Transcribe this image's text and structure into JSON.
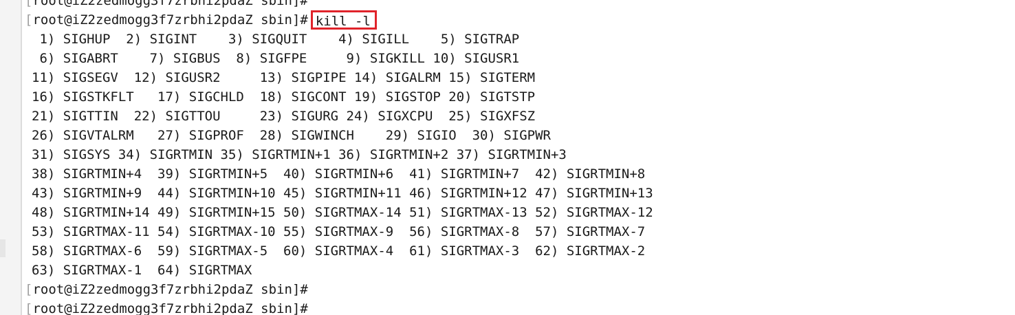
{
  "terminal": {
    "prompt": "root@iZ2zedmogg3f7zrbhi2pdaZ sbin]#",
    "prompt_bracket": "[",
    "command": "kill -l",
    "highlight_color": "#e0232a",
    "output": [
      " 1) SIGHUP  2) SIGINT    3) SIGQUIT    4) SIGILL    5) SIGTRAP",
      " 6) SIGABRT    7) SIGBUS  8) SIGFPE     9) SIGKILL 10) SIGUSR1",
      "11) SIGSEGV  12) SIGUSR2     13) SIGPIPE 14) SIGALRM 15) SIGTERM",
      "16) SIGSTKFLT   17) SIGCHLD  18) SIGCONT 19) SIGSTOP 20) SIGTSTP",
      "21) SIGTTIN  22) SIGTTOU     23) SIGURG 24) SIGXCPU  25) SIGXFSZ",
      "26) SIGVTALRM   27) SIGPROF  28) SIGWINCH    29) SIGIO  30) SIGPWR",
      "31) SIGSYS 34) SIGRTMIN 35) SIGRTMIN+1 36) SIGRTMIN+2 37) SIGRTMIN+3",
      "38) SIGRTMIN+4  39) SIGRTMIN+5  40) SIGRTMIN+6  41) SIGRTMIN+7  42) SIGRTMIN+8",
      "43) SIGRTMIN+9  44) SIGRTMIN+10 45) SIGRTMIN+11 46) SIGRTMIN+12 47) SIGRTMIN+13",
      "48) SIGRTMIN+14 49) SIGRTMIN+15 50) SIGRTMAX-14 51) SIGRTMAX-13 52) SIGRTMAX-12",
      "53) SIGRTMAX-11 54) SIGRTMAX-10 55) SIGRTMAX-9  56) SIGRTMAX-8  57) SIGRTMAX-7",
      "58) SIGRTMAX-6  59) SIGRTMAX-5  60) SIGRTMAX-4  61) SIGRTMAX-3  62) SIGRTMAX-2",
      "63) SIGRTMAX-1  64) SIGRTMAX"
    ]
  }
}
